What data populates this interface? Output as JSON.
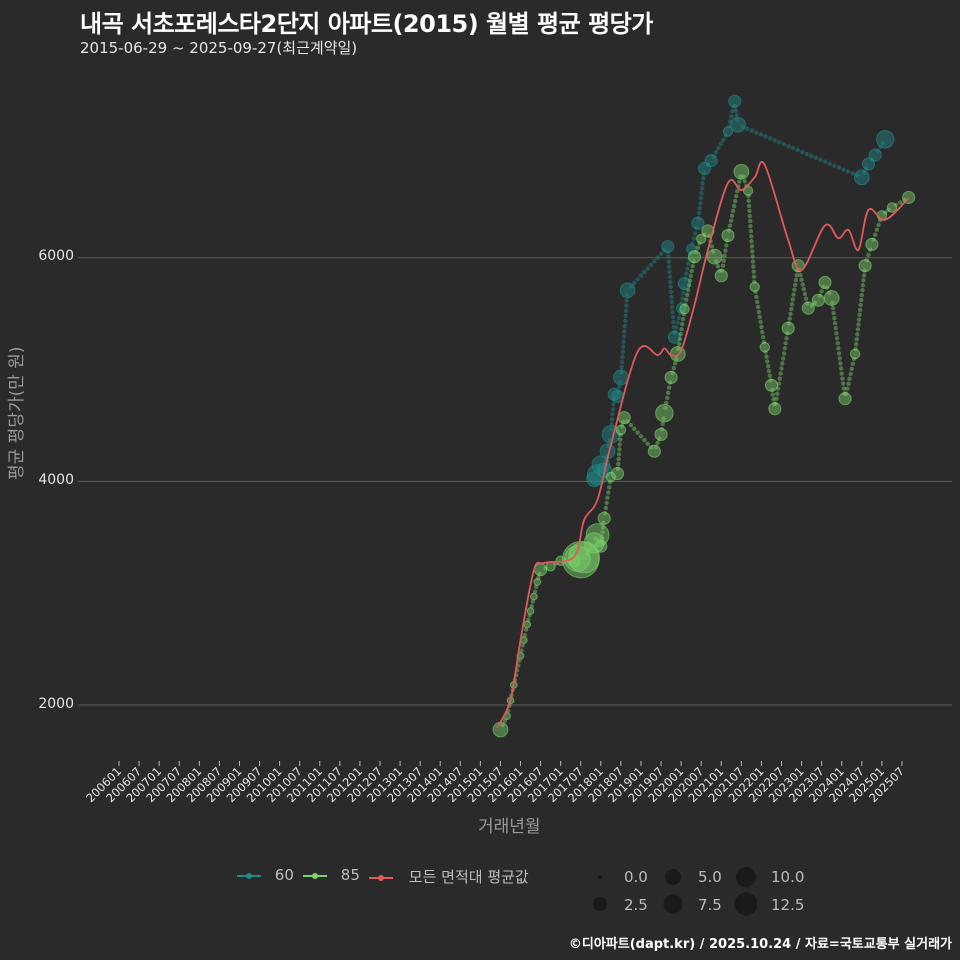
{
  "header": {
    "title": "내곡 서초포레스타2단지 아파트(2015) 월별 평균 평당가",
    "subtitle": "2015-06-29 ~ 2025-09-27(최근계약일)"
  },
  "axes": {
    "ylabel": "평균 평당가(만 원)",
    "xlabel": "거래년월",
    "yticks": [
      "2000",
      "4000",
      "6000"
    ],
    "xticks": [
      "200601",
      "200607",
      "200701",
      "200707",
      "200801",
      "200807",
      "200901",
      "200907",
      "201001",
      "201007",
      "201101",
      "201107",
      "201201",
      "201207",
      "201301",
      "201307",
      "201401",
      "201407",
      "201501",
      "201507",
      "201601",
      "201607",
      "201701",
      "201707",
      "201801",
      "201807",
      "201901",
      "201907",
      "202001",
      "202007",
      "202101",
      "202107",
      "202201",
      "202207",
      "202301",
      "202307",
      "202401",
      "202407",
      "202501",
      "202507"
    ]
  },
  "legend": {
    "series": [
      {
        "label": "60",
        "color": "#1f8a8a"
      },
      {
        "label": "85",
        "color": "#7dd36b"
      },
      {
        "label": "모든 면적대 평균값",
        "color": "#e05a5d"
      }
    ],
    "sizes": [
      "0.0",
      "2.5",
      "5.0",
      "7.5",
      "10.0",
      "12.5"
    ]
  },
  "footer": {
    "credit": "©디아파트(dapt.kr) / 2025.10.24 / 자료=국토교통부 실거래가"
  },
  "colors": {
    "background": "#2a2a2b",
    "grid": "#5c5c5c",
    "s60": "#1f8a8a",
    "s85": "#7dd36b",
    "avg": "#e05a5d"
  },
  "chart_data": {
    "type": "scatter",
    "title": "내곡 서초포레스타2단지 아파트(2015) 월별 평균 평당가",
    "subtitle": "2015-06-29 ~ 2025-09-27(최근계약일)",
    "xlabel": "거래년월",
    "ylabel": "평균 평당가(만 원)",
    "ylim": [
      1550,
      7600
    ],
    "xrange": [
      "2006-01",
      "2025-10"
    ],
    "grid": "horizontal major",
    "legend_position": "bottom",
    "series": [
      {
        "name": "60",
        "type": "scatter+line",
        "color": "#1f8a8a",
        "points": [
          [
            "2017-11",
            4020,
            4
          ],
          [
            "2017-12",
            4060,
            6
          ],
          [
            "2018-01",
            4150,
            5
          ],
          [
            "2018-02",
            4100,
            4
          ],
          [
            "2018-03",
            4270,
            4
          ],
          [
            "2018-04",
            4420,
            5
          ],
          [
            "2018-05",
            4780,
            3
          ],
          [
            "2018-06",
            4760,
            3
          ],
          [
            "2018-07",
            4930,
            4
          ],
          [
            "2018-09",
            5710,
            4
          ],
          [
            "2019-09",
            6100,
            3
          ],
          [
            "2019-11",
            5290,
            3
          ],
          [
            "2020-01",
            5550,
            2
          ],
          [
            "2020-02",
            5770,
            3
          ],
          [
            "2020-04",
            6080,
            2
          ],
          [
            "2020-06",
            6310,
            3
          ],
          [
            "2020-08",
            6800,
            3
          ],
          [
            "2020-10",
            6870,
            3
          ],
          [
            "2021-03",
            7130,
            2
          ],
          [
            "2021-05",
            7400,
            3
          ],
          [
            "2021-06",
            7190,
            4
          ],
          [
            "2024-07",
            6720,
            4
          ],
          [
            "2024-09",
            6840,
            3
          ],
          [
            "2024-11",
            6920,
            3
          ],
          [
            "2025-02",
            7060,
            5
          ]
        ]
      },
      {
        "name": "85",
        "type": "scatter+line",
        "color": "#7dd36b",
        "points": [
          [
            "2015-07",
            1780,
            4
          ],
          [
            "2015-09",
            1900,
            1
          ],
          [
            "2015-10",
            2040,
            1
          ],
          [
            "2015-11",
            2180,
            1
          ],
          [
            "2016-01",
            2440,
            1
          ],
          [
            "2016-02",
            2580,
            1
          ],
          [
            "2016-03",
            2720,
            1
          ],
          [
            "2016-04",
            2840,
            1
          ],
          [
            "2016-05",
            2970,
            1
          ],
          [
            "2016-06",
            3100,
            1
          ],
          [
            "2016-07",
            3210,
            3
          ],
          [
            "2016-10",
            3240,
            2
          ],
          [
            "2017-01",
            3290,
            2
          ],
          [
            "2017-05",
            3290,
            3
          ],
          [
            "2017-06",
            3310,
            8
          ],
          [
            "2017-07",
            3300,
            12
          ],
          [
            "2017-08",
            3320,
            10
          ],
          [
            "2017-11",
            3450,
            6
          ],
          [
            "2017-12",
            3520,
            7
          ],
          [
            "2018-01",
            3420,
            3
          ],
          [
            "2018-02",
            3670,
            3
          ],
          [
            "2018-04",
            4040,
            2
          ],
          [
            "2018-06",
            4070,
            3
          ],
          [
            "2018-07",
            4460,
            2
          ],
          [
            "2018-08",
            4570,
            3
          ],
          [
            "2019-05",
            4270,
            3
          ],
          [
            "2019-07",
            4420,
            3
          ],
          [
            "2019-08",
            4610,
            5
          ],
          [
            "2019-10",
            4930,
            3
          ],
          [
            "2019-12",
            5140,
            4
          ],
          [
            "2020-02",
            5540,
            2
          ],
          [
            "2020-05",
            6010,
            3
          ],
          [
            "2020-07",
            6170,
            2
          ],
          [
            "2020-09",
            6240,
            3
          ],
          [
            "2020-11",
            6010,
            4
          ],
          [
            "2021-01",
            5840,
            3
          ],
          [
            "2021-03",
            6200,
            3
          ],
          [
            "2021-07",
            6770,
            4
          ],
          [
            "2021-09",
            6600,
            2
          ],
          [
            "2021-11",
            5740,
            2
          ],
          [
            "2022-02",
            5200,
            2
          ],
          [
            "2022-04",
            4860,
            3
          ],
          [
            "2022-05",
            4650,
            3
          ],
          [
            "2022-09",
            5370,
            3
          ],
          [
            "2022-12",
            5930,
            3
          ],
          [
            "2023-03",
            5550,
            3
          ],
          [
            "2023-06",
            5620,
            3
          ],
          [
            "2023-08",
            5780,
            3
          ],
          [
            "2023-10",
            5640,
            4
          ],
          [
            "2024-02",
            4740,
            3
          ],
          [
            "2024-05",
            5140,
            2
          ],
          [
            "2024-08",
            5930,
            3
          ],
          [
            "2024-10",
            6120,
            3
          ],
          [
            "2025-01",
            6380,
            2
          ],
          [
            "2025-04",
            6450,
            2
          ],
          [
            "2025-09",
            6540,
            3
          ]
        ]
      },
      {
        "name": "모든 면적대 평균값",
        "type": "line",
        "color": "#e05a5d",
        "x": [
          "2015-06",
          "2015-10",
          "2016-01",
          "2016-05",
          "2016-08",
          "2017-05",
          "2017-08",
          "2017-12",
          "2018-04",
          "2018-12",
          "2019-06",
          "2019-08",
          "2019-10",
          "2020-01",
          "2020-05",
          "2020-09",
          "2021-03",
          "2021-07",
          "2021-11",
          "2022-02",
          "2022-09",
          "2023-01",
          "2023-08",
          "2023-12",
          "2024-03",
          "2024-06",
          "2024-09",
          "2025-02",
          "2025-09"
        ],
        "values": [
          1795,
          2045,
          2580,
          3205,
          3270,
          3325,
          3655,
          3835,
          4325,
          5160,
          5130,
          5190,
          5130,
          5170,
          5580,
          6070,
          6670,
          6605,
          6720,
          6830,
          6160,
          5890,
          6290,
          6175,
          6250,
          6070,
          6430,
          6340,
          6535
        ]
      }
    ],
    "size_legend": {
      "title": "",
      "values": [
        0.0,
        2.5,
        5.0,
        7.5,
        10.0,
        12.5
      ]
    }
  }
}
